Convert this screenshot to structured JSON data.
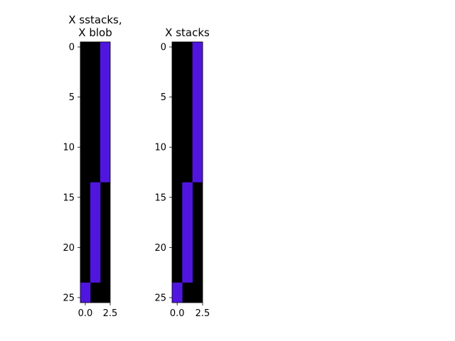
{
  "chart_data": [
    {
      "type": "heatmap",
      "title_lines": [
        "X sstacks,",
        "X blob"
      ],
      "xlabel": "",
      "ylabel": "",
      "rows": 26,
      "cols": 3,
      "xlim": [
        -0.5,
        2.5
      ],
      "ylim": [
        25.5,
        -0.5
      ],
      "x_ticks": [
        0.0,
        2.5
      ],
      "x_tick_labels": [
        "0.0",
        "2.5"
      ],
      "y_ticks": [
        0,
        5,
        10,
        15,
        20,
        25
      ],
      "y_tick_labels": [
        "0",
        "5",
        "10",
        "15",
        "20",
        "25"
      ],
      "colors": {
        "0": "#000000",
        "1": "#5016e0"
      },
      "grid": false,
      "segments": [
        {
          "col": 2,
          "row_start": 0,
          "row_end": 13,
          "value": 1
        },
        {
          "col": 1,
          "row_start": 14,
          "row_end": 23,
          "value": 1
        },
        {
          "col": 0,
          "row_start": 24,
          "row_end": 25,
          "value": 1
        }
      ]
    },
    {
      "type": "heatmap",
      "title_lines": [
        "X stacks"
      ],
      "xlabel": "",
      "ylabel": "",
      "rows": 26,
      "cols": 3,
      "xlim": [
        -0.5,
        2.5
      ],
      "ylim": [
        25.5,
        -0.5
      ],
      "x_ticks": [
        0.0,
        2.5
      ],
      "x_tick_labels": [
        "0.0",
        "2.5"
      ],
      "y_ticks": [
        0,
        5,
        10,
        15,
        20,
        25
      ],
      "y_tick_labels": [
        "0",
        "5",
        "10",
        "15",
        "20",
        "25"
      ],
      "colors": {
        "0": "#000000",
        "1": "#5016e0"
      },
      "grid": false,
      "segments": [
        {
          "col": 2,
          "row_start": 0,
          "row_end": 13,
          "value": 1
        },
        {
          "col": 1,
          "row_start": 14,
          "row_end": 23,
          "value": 1
        },
        {
          "col": 0,
          "row_start": 24,
          "row_end": 25,
          "value": 1
        }
      ]
    }
  ]
}
